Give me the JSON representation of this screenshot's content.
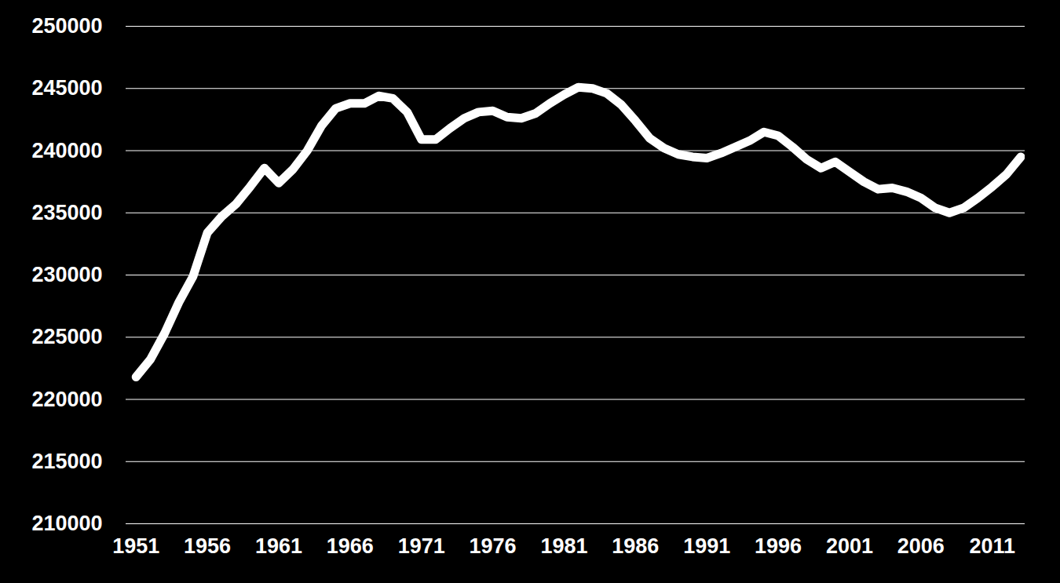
{
  "chart_data": {
    "type": "line",
    "x": [
      1951,
      1952,
      1953,
      1954,
      1955,
      1956,
      1957,
      1958,
      1959,
      1960,
      1961,
      1962,
      1963,
      1964,
      1965,
      1966,
      1967,
      1968,
      1969,
      1970,
      1971,
      1972,
      1973,
      1974,
      1975,
      1976,
      1977,
      1978,
      1979,
      1980,
      1981,
      1982,
      1983,
      1984,
      1985,
      1986,
      1987,
      1988,
      1989,
      1990,
      1991,
      1992,
      1993,
      1994,
      1995,
      1996,
      1997,
      1998,
      1999,
      2000,
      2001,
      2002,
      2003,
      2004,
      2005,
      2006,
      2007,
      2008,
      2009,
      2010,
      2011,
      2012,
      2013
    ],
    "values": [
      221800,
      223200,
      225300,
      227800,
      229900,
      233400,
      234700,
      235700,
      237100,
      238600,
      237400,
      238500,
      240000,
      242000,
      243400,
      243800,
      243800,
      244400,
      244200,
      243100,
      240900,
      240900,
      241800,
      242600,
      243100,
      243200,
      242700,
      242600,
      243000,
      243800,
      244500,
      245100,
      245000,
      244600,
      243700,
      242400,
      241000,
      240200,
      239700,
      239500,
      239400,
      239800,
      240300,
      240800,
      241500,
      241200,
      240300,
      239300,
      238600,
      239100,
      238300,
      237500,
      236900,
      237000,
      236700,
      236200,
      235400,
      235000,
      235400,
      236200,
      237100,
      238100,
      239500
    ],
    "color": "#ffffff",
    "xlim": [
      1950.3,
      2013.3
    ],
    "xticks": [
      1951,
      1956,
      1961,
      1966,
      1971,
      1976,
      1981,
      1986,
      1991,
      1996,
      2001,
      2006,
      2011
    ],
    "ylim": [
      210000,
      250000
    ],
    "yticks": [
      210000,
      215000,
      220000,
      225000,
      230000,
      235000,
      240000,
      245000,
      250000
    ],
    "grid": true
  }
}
